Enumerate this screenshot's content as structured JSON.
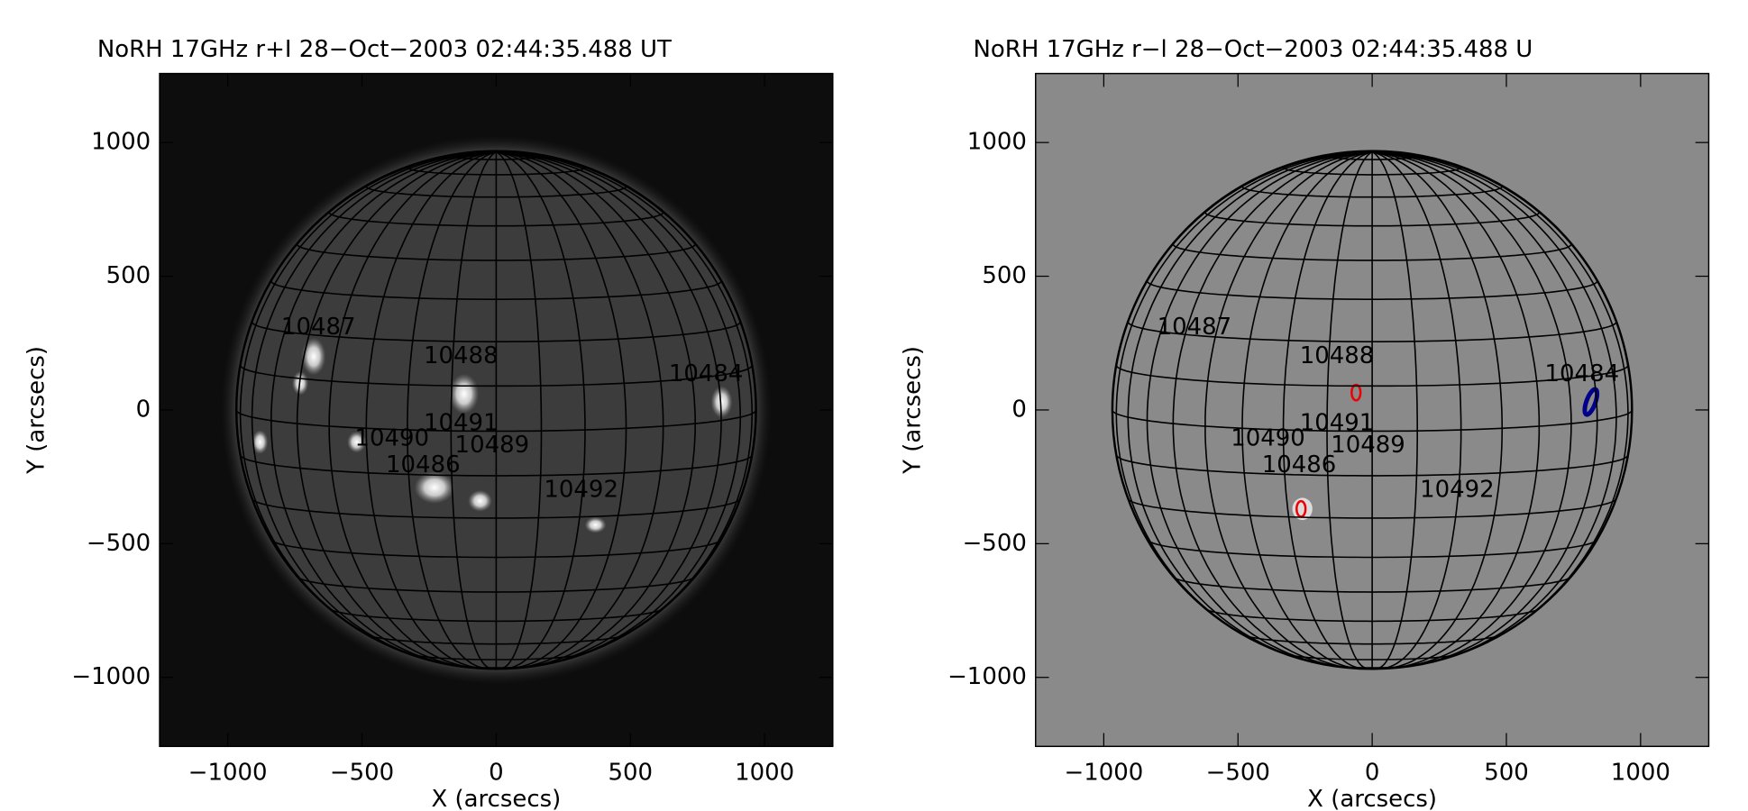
{
  "chart_data": [
    {
      "type": "image",
      "title": "NoRH 17GHz r+I 28−Oct−2003 02:44:35.488 UT",
      "xlabel": "X (arcsecs)",
      "ylabel": "Y (arcsecs)",
      "xlim": [
        -1254,
        1254
      ],
      "ylim": [
        -1258,
        1258
      ],
      "xticks": [
        {
          "value": -1000,
          "label": "−1000"
        },
        {
          "value": -500,
          "label": "−500"
        },
        0,
        500,
        1000
      ],
      "yticks": [
        {
          "value": -1000,
          "label": "−1000"
        },
        {
          "value": -500,
          "label": "−500"
        },
        0,
        500,
        1000
      ],
      "background": "#0d0d0d",
      "disk_color": "#3c3c3c",
      "annotation_color": "#ffffff",
      "annotations": [
        {
          "text": "10487",
          "x": -801,
          "y": 308
        },
        {
          "text": "10488",
          "x": -270,
          "y": 200
        },
        {
          "text": "10484",
          "x": 643,
          "y": 133
        },
        {
          "text": "10491",
          "x": -270,
          "y": -50
        },
        {
          "text": "10490",
          "x": -527,
          "y": -108
        },
        {
          "text": "10489",
          "x": -154,
          "y": -133
        },
        {
          "text": "10486",
          "x": -411,
          "y": -208
        },
        {
          "text": "10492",
          "x": 178,
          "y": -300
        }
      ]
    },
    {
      "type": "image",
      "title": "NoRH 17GHz r−l 28−Oct−2003 02:44:35.488 U",
      "xlabel": "X (arcsecs)",
      "ylabel": "Y (arcsecs)",
      "xlim": [
        -1254,
        1254
      ],
      "ylim": [
        -1258,
        1258
      ],
      "xticks": [
        {
          "value": -1000,
          "label": "−1000"
        },
        {
          "value": -500,
          "label": "−500"
        },
        0,
        500,
        1000
      ],
      "yticks": [
        {
          "value": -1000,
          "label": "−1000"
        },
        {
          "value": -500,
          "label": "−500"
        },
        0,
        500,
        1000
      ],
      "background": "#8a8a8a",
      "disk_color": "#8a8a8a",
      "annotation_color": "#ffff00",
      "annotations": [
        {
          "text": "10487",
          "x": -801,
          "y": 308
        },
        {
          "text": "10488",
          "x": -270,
          "y": 200
        },
        {
          "text": "10484",
          "x": 643,
          "y": 133
        },
        {
          "text": "10491",
          "x": -270,
          "y": -50
        },
        {
          "text": "10490",
          "x": -527,
          "y": -108
        },
        {
          "text": "10489",
          "x": -154,
          "y": -133
        },
        {
          "text": "10486",
          "x": -411,
          "y": -208
        },
        {
          "text": "10492",
          "x": 178,
          "y": -300
        }
      ]
    }
  ]
}
